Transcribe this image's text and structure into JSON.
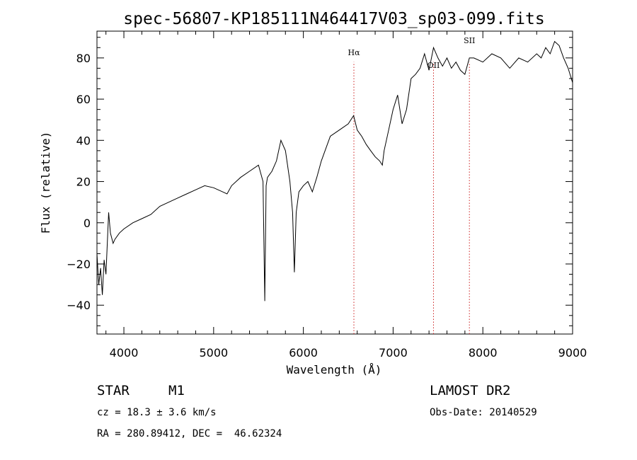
{
  "chart_data": {
    "type": "line",
    "title": "spec-56807-KP185111N464417V03_sp03-099.fits",
    "xlabel": "Wavelength (Å)",
    "ylabel": "Flux (relative)",
    "xlim": [
      3700,
      9000
    ],
    "ylim": [
      -54,
      93
    ],
    "xticks": [
      "4000",
      "5000",
      "6000",
      "7000",
      "8000",
      "9000"
    ],
    "yticks": [
      "−40",
      "−20",
      "0",
      "20",
      "40",
      "60",
      "80"
    ],
    "grid": false,
    "series": [
      {
        "x": [
          3700,
          3720,
          3740,
          3760,
          3780,
          3800,
          3830,
          3850,
          3880,
          3900,
          3950,
          4000,
          4100,
          4200,
          4300,
          4400,
          4500,
          4600,
          4700,
          4800,
          4900,
          5000,
          5100,
          5150,
          5200,
          5300,
          5400,
          5500,
          5550,
          5570,
          5585,
          5600,
          5650,
          5700,
          5750,
          5800,
          5850,
          5880,
          5900,
          5920,
          5950,
          6000,
          6050,
          6100,
          6150,
          6200,
          6300,
          6400,
          6500,
          6560,
          6600,
          6650,
          6700,
          6750,
          6800,
          6850,
          6880,
          6900,
          6950,
          7000,
          7050,
          7100,
          7150,
          7200,
          7250,
          7300,
          7350,
          7400,
          7450,
          7500,
          7550,
          7600,
          7650,
          7700,
          7750,
          7800,
          7850,
          7900,
          8000,
          8100,
          8200,
          8300,
          8400,
          8500,
          8600,
          8650,
          8700,
          8750,
          8800,
          8850,
          8900,
          8950,
          9000
        ],
        "y": [
          -15,
          -30,
          -22,
          -35,
          -18,
          -25,
          5,
          -5,
          -10,
          -8,
          -5,
          -3,
          0,
          2,
          4,
          8,
          10,
          12,
          14,
          16,
          18,
          17,
          15,
          14,
          18,
          22,
          25,
          28,
          20,
          -38,
          18,
          22,
          25,
          30,
          40,
          35,
          20,
          5,
          -24,
          5,
          15,
          18,
          20,
          15,
          22,
          30,
          42,
          45,
          48,
          52,
          45,
          42,
          38,
          35,
          32,
          30,
          28,
          35,
          45,
          55,
          62,
          48,
          55,
          70,
          72,
          75,
          82,
          74,
          85,
          80,
          76,
          80,
          75,
          78,
          74,
          72,
          80,
          80,
          78,
          82,
          80,
          75,
          80,
          78,
          82,
          80,
          85,
          82,
          88,
          86,
          80,
          75,
          68
        ]
      }
    ],
    "lines": [
      {
        "label": "Hα",
        "x": 6563
      },
      {
        "label": "OII",
        "x": 7450
      },
      {
        "label": "SII",
        "x": 7850
      }
    ]
  },
  "info": {
    "class": "STAR",
    "subclass": "M1",
    "survey": "LAMOST DR2",
    "cz": "cz = 18.3 ± 3.6 km/s",
    "obs_date": "Obs-Date: 20140529",
    "coords": "RA = 280.89412, DEC =  46.62324"
  }
}
